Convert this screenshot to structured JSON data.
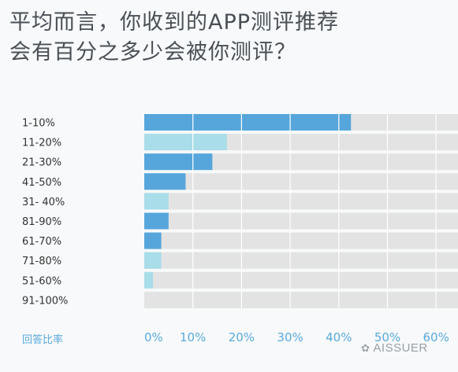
{
  "title_lines": [
    "平均而言，你收到的APP测评推荐",
    "会有百分之多少会被你测评？"
  ],
  "footer_label": "回答比率",
  "watermark": "AISSUER",
  "colors": {
    "dark_blue": "#56a6db",
    "light_blue": "#a8dde9",
    "track": "#e3e3e3",
    "axis_text": "#5aa9dc",
    "category_text": "#333333"
  },
  "chart_data": {
    "type": "bar",
    "orientation": "horizontal",
    "categories": [
      "1-10%",
      "11-20%",
      "21-30%",
      "41-50%",
      "31- 40%",
      "81-90%",
      "61-70%",
      "71-80%",
      "51-60%",
      "91-100%"
    ],
    "values": [
      42.5,
      17,
      14,
      8.5,
      5,
      5,
      3.5,
      3.5,
      1.8,
      0
    ],
    "bar_colors": [
      "dark_blue",
      "light_blue",
      "dark_blue",
      "dark_blue",
      "light_blue",
      "dark_blue",
      "dark_blue",
      "light_blue",
      "light_blue",
      "dark_blue"
    ],
    "x_ticks": [
      "0%",
      "10%",
      "20%",
      "30%",
      "40%",
      "50%",
      "60%"
    ],
    "xlim": [
      0,
      65
    ],
    "grid": true
  }
}
